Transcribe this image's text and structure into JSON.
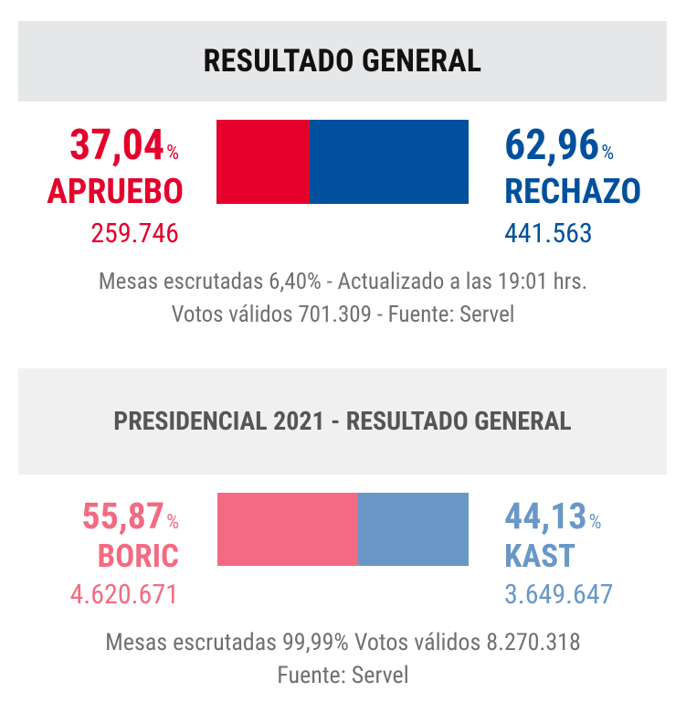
{
  "panel1": {
    "title": "RESULTADO GENERAL",
    "left": {
      "pct_value": "37,04",
      "pct_sign": "%",
      "name": "APRUEBO",
      "votes": "259.746",
      "color": "#e4002b",
      "share": 37.04
    },
    "right": {
      "pct_value": "62,96",
      "pct_sign": "%",
      "name": "RECHAZO",
      "votes": "441.563",
      "color": "#00509d",
      "share": 62.96
    },
    "footer_line1": "Mesas escrutadas 6,40% - Actualizado a las 19:01 hrs.",
    "footer_line2": "Votos válidos 701.309 - Fuente: Servel"
  },
  "panel2": {
    "title": "PRESIDENCIAL 2021 - RESULTADO GENERAL",
    "left": {
      "pct_value": "55,87",
      "pct_sign": "%",
      "name": "BORIC",
      "votes": "4.620.671",
      "color": "#f36b82",
      "share": 55.87
    },
    "right": {
      "pct_value": "44,13",
      "pct_sign": "%",
      "name": "KAST",
      "votes": "3.649.647",
      "color": "#6998c7",
      "share": 44.13
    },
    "footer_line1": "Mesas escrutadas 99,99% Votos válidos 8.270.318",
    "footer_line2": "Fuente: Servel"
  }
}
